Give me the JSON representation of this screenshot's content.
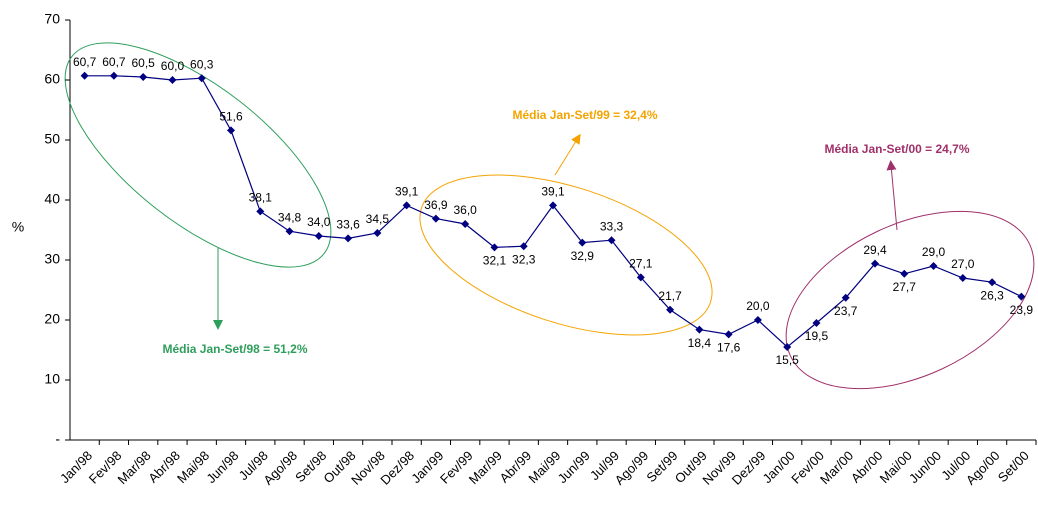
{
  "chart_data": {
    "type": "line",
    "y_label": "%",
    "categories": [
      "Jan/98",
      "Fev/98",
      "Mar/98",
      "Abr/98",
      "Mai/98",
      "Jun/98",
      "Jul/98",
      "Ago/98",
      "Set/98",
      "Out/98",
      "Nov/98",
      "Dez/98",
      "Jan/99",
      "Fev/99",
      "Mar/99",
      "Abr/99",
      "Mai/99",
      "Jun/99",
      "Jul/99",
      "Ago/99",
      "Set/99",
      "Out/99",
      "Nov/99",
      "Dez/99",
      "Jan/00",
      "Fev/00",
      "Mar/00",
      "Abr/00",
      "Mai/00",
      "Jun/00",
      "Jul/00",
      "Ago/00",
      "Set/00"
    ],
    "values": [
      60.7,
      60.7,
      60.5,
      60.0,
      60.3,
      51.6,
      38.1,
      34.8,
      34.0,
      33.6,
      34.5,
      39.1,
      36.9,
      36.0,
      32.1,
      32.3,
      39.1,
      32.9,
      33.3,
      27.1,
      21.7,
      18.4,
      17.6,
      20.0,
      15.5,
      19.5,
      23.7,
      29.4,
      27.7,
      29.0,
      27.0,
      26.3,
      23.9
    ],
    "value_labels": [
      "60,7",
      "60,7",
      "60,5",
      "60,0",
      "60,3",
      "51,6",
      "38,1",
      "34,8",
      "34,0",
      "33,6",
      "34,5",
      "39,1",
      "36,9",
      "36,0",
      "32,1",
      "32,3",
      "39,1",
      "32,9",
      "33,3",
      "27,1",
      "21,7",
      "18,4",
      "17,6",
      "20,0",
      "15,5",
      "19,5",
      "23,7",
      "29,4",
      "27,7",
      "29,0",
      "27,0",
      "26,3",
      "23,9"
    ],
    "color": "#000080",
    "ylim": [
      0,
      70
    ],
    "yticks": [
      {
        "value": 0,
        "label": "-"
      },
      10,
      20,
      30,
      40,
      50,
      60,
      70
    ],
    "annotations": [
      "Média Jan-Set/98 = 51,2%",
      "Média Jan-Set/99 = 32,4%",
      "Média Jan-Set/00 = 24,7%"
    ]
  }
}
